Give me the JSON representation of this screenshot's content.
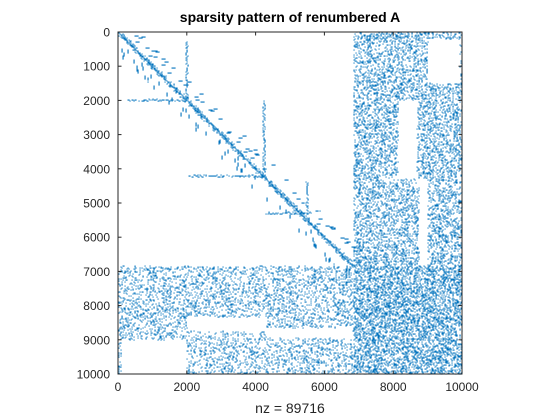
{
  "chart_data": {
    "type": "scatter",
    "title": "sparsity pattern of renumbered A",
    "xlabel": "nz = 89716",
    "ylabel": "",
    "xlim": [
      0,
      10000
    ],
    "ylim": [
      10000,
      0
    ],
    "y_reversed": true,
    "x_ticks": [
      "0",
      "2000",
      "4000",
      "6000",
      "8000",
      "10000"
    ],
    "y_ticks": [
      "0",
      "1000",
      "2000",
      "3000",
      "4000",
      "5000",
      "6000",
      "7000",
      "8000",
      "9000",
      "10000"
    ],
    "grid": false,
    "legend": "none",
    "marker_color": "#0072BD",
    "matrix_size": 10000,
    "nz": 89716,
    "structure": {
      "diagonal": [
        0,
        6850
      ],
      "dense_blocks": [
        {
          "rows": [
            0,
            6850
          ],
          "cols": [
            6850,
            10000
          ]
        },
        {
          "rows": [
            6850,
            10000
          ],
          "cols": [
            0,
            6850
          ]
        },
        {
          "rows": [
            6850,
            10000
          ],
          "cols": [
            6850,
            10000
          ]
        }
      ],
      "empty_regions": [
        {
          "rows": [
            200,
            1500
          ],
          "cols": [
            9000,
            9950
          ]
        },
        {
          "rows": [
            2000,
            4300
          ],
          "cols": [
            8150,
            8700
          ]
        },
        {
          "rows": [
            4300,
            6850
          ],
          "cols": [
            8750,
            9000
          ]
        },
        {
          "rows": [
            8350,
            8750
          ],
          "cols": [
            2000,
            4300
          ]
        },
        {
          "rows": [
            8650,
            8950
          ],
          "cols": [
            4300,
            6800
          ]
        },
        {
          "rows": [
            9000,
            10000
          ],
          "cols": [
            100,
            2000
          ]
        }
      ],
      "separator_rows": [
        {
          "row": 2000,
          "cols": [
            300,
            2000
          ]
        },
        {
          "row": 4220,
          "cols": [
            2000,
            4250
          ]
        },
        {
          "row": 5300,
          "cols": [
            4300,
            5600
          ]
        }
      ],
      "separator_cols": [
        {
          "col": 2000,
          "rows": [
            300,
            2000
          ]
        },
        {
          "col": 4250,
          "rows": [
            2000,
            4250
          ]
        },
        {
          "col": 5500,
          "rows": [
            4400,
            5300
          ]
        }
      ]
    }
  }
}
